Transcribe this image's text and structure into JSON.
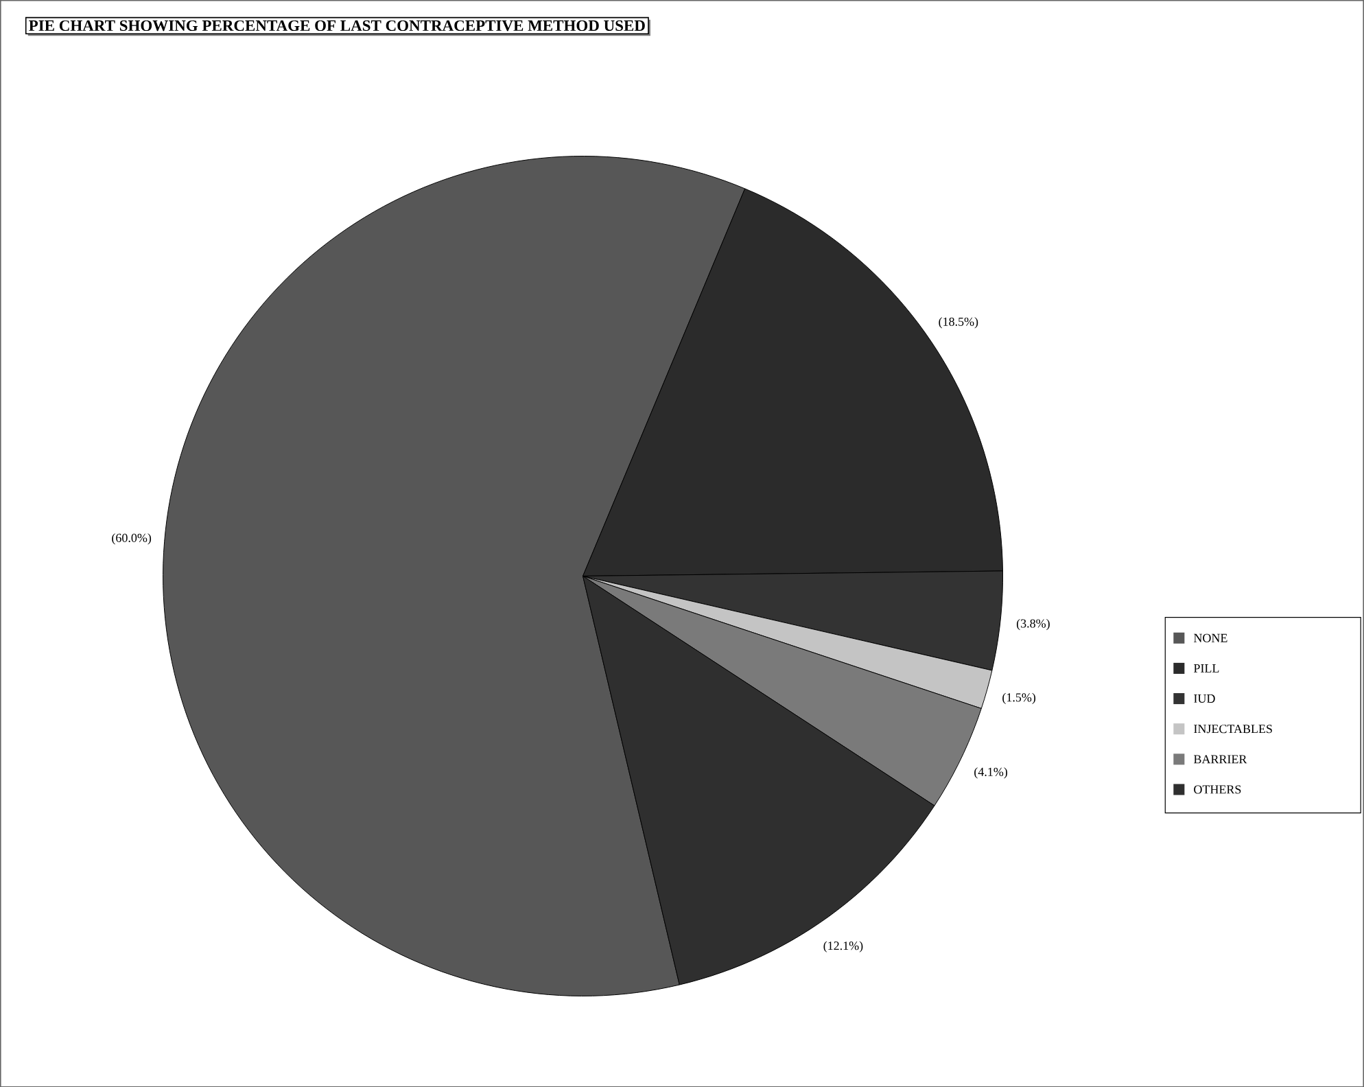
{
  "chart_data": {
    "type": "pie",
    "title": "PIE CHART SHOWING PERCENTAGE OF LAST CONTRACEPTIVE METHOD USED",
    "categories": [
      "NONE",
      "PILL",
      "IUD",
      "INJECTABLES",
      "BARRIER",
      "OTHERS"
    ],
    "values": [
      60.0,
      18.5,
      3.8,
      1.5,
      4.1,
      12.1
    ],
    "value_labels": [
      "(60.0%)",
      "(18.5%)",
      "(3.8%)",
      "(1.5%)",
      "(4.1%)",
      "(12.1%)"
    ],
    "colors": [
      "#575757",
      "#2b2b2b",
      "#333333",
      "#c4c4c4",
      "#7a7a7a",
      "#2f2f2f"
    ],
    "legend": "right"
  }
}
